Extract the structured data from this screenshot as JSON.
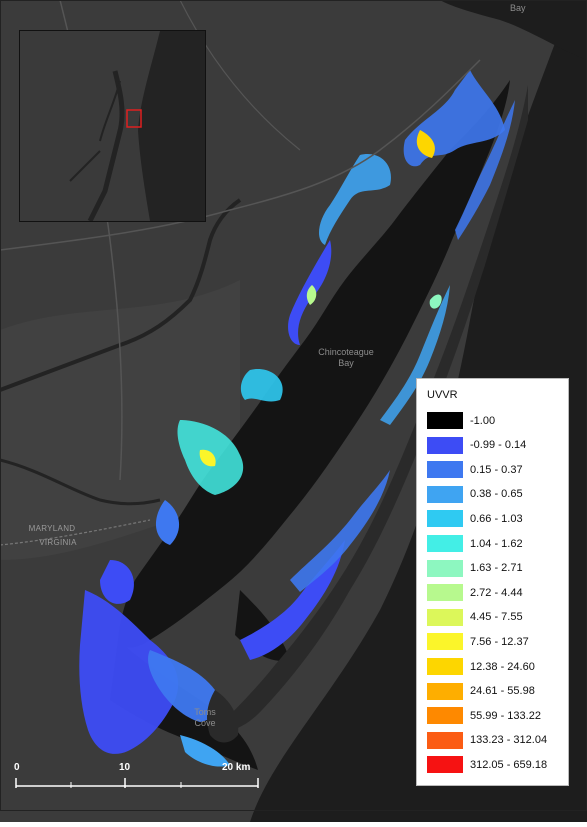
{
  "map": {
    "places": {
      "bay_top": "Bay",
      "chincoteague": "Chincoteague\nBay",
      "maryland": "MARYLAND",
      "virginia": "VIRGINIA",
      "toms_cove": "Toms\nCove"
    },
    "colors": {
      "land": "#3b3b3b",
      "water": "#1a1a1a",
      "road": "#555555",
      "river": "#232323"
    }
  },
  "legend": {
    "title": "UVVR",
    "classes": [
      {
        "label": "-1.00",
        "color": "#000000"
      },
      {
        "label": "-0.99 - 0.14",
        "color": "#3d4cf5"
      },
      {
        "label": "0.15 - 0.37",
        "color": "#3e78f0"
      },
      {
        "label": "0.38 - 0.65",
        "color": "#3fa4f2"
      },
      {
        "label": "0.66 - 1.03",
        "color": "#2fcaf2"
      },
      {
        "label": "1.04 - 1.62",
        "color": "#43eee6"
      },
      {
        "label": "1.63 - 2.71",
        "color": "#8df7c0"
      },
      {
        "label": "2.72 - 4.44",
        "color": "#b7f98e"
      },
      {
        "label": "4.45 - 7.55",
        "color": "#dcf75a"
      },
      {
        "label": "7.56 - 12.37",
        "color": "#fbf52a"
      },
      {
        "label": "12.38 - 24.60",
        "color": "#fdd600"
      },
      {
        "label": "24.61 - 55.98",
        "color": "#feae00"
      },
      {
        "label": "55.99 - 133.22",
        "color": "#fe8900"
      },
      {
        "label": "133.23 - 312.04",
        "color": "#fb5c14"
      },
      {
        "label": "312.05 - 659.18",
        "color": "#f61212"
      }
    ]
  },
  "scalebar": {
    "labels": [
      "0",
      "10",
      "20 km"
    ],
    "values_km": [
      0,
      10,
      20
    ]
  },
  "inset": {
    "highlight_color": "#e02020"
  }
}
